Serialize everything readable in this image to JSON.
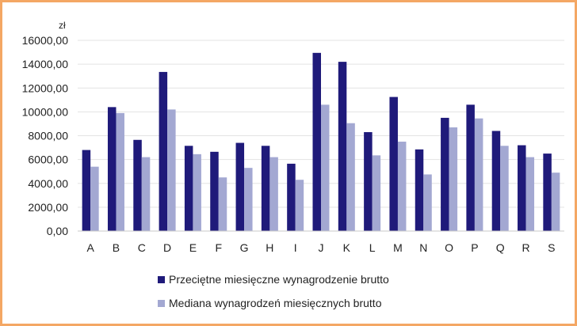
{
  "chart_data": {
    "type": "bar",
    "unit_label": "zł",
    "categories": [
      "A",
      "B",
      "C",
      "D",
      "E",
      "F",
      "G",
      "H",
      "I",
      "J",
      "K",
      "L",
      "M",
      "N",
      "O",
      "P",
      "Q",
      "R",
      "S"
    ],
    "series": [
      {
        "name": "Przeciętne miesięczne wynagrodzenie brutto",
        "color": "#1f1a7a",
        "values": [
          6800,
          10400,
          7650,
          13350,
          7150,
          6650,
          7400,
          7150,
          5650,
          14950,
          14200,
          8300,
          11250,
          6850,
          9500,
          10600,
          8400,
          7200,
          6500
        ]
      },
      {
        "name": "Mediana wynagrodzeń miesięcznych brutto",
        "color": "#a3a8d2",
        "values": [
          5400,
          9900,
          6200,
          10200,
          6450,
          4500,
          5300,
          6200,
          4300,
          10600,
          9050,
          6350,
          7500,
          4750,
          8700,
          9450,
          7150,
          6200,
          4900
        ]
      }
    ],
    "yticks": [
      "0,00",
      "2000,00",
      "4000,00",
      "6000,00",
      "8000,00",
      "10000,00",
      "12000,00",
      "14000,00",
      "16000,00"
    ],
    "ylim": [
      0,
      16000
    ],
    "grid": true,
    "legend_position": "bottom"
  }
}
